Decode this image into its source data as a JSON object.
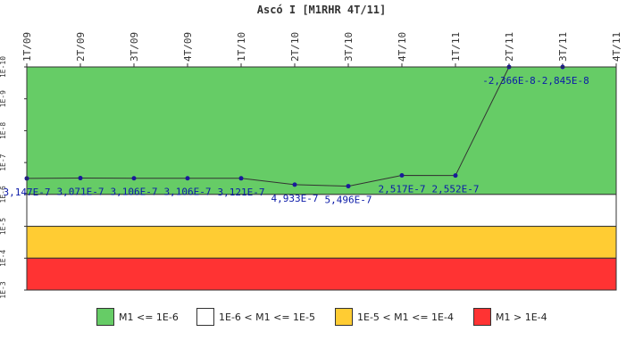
{
  "chart_data": {
    "type": "line",
    "title": "Ascó I [M1RHR 4T/11]",
    "y_scale": "log",
    "y_axis_reversed": true,
    "ylim": [
      1e-10,
      0.001
    ],
    "y_ticks": [
      "1E-10",
      "1E-9",
      "1E-8",
      "1E-7",
      "1E-6",
      "1E-5",
      "1E-4",
      "1E-3"
    ],
    "categories": [
      "1T/09",
      "2T/09",
      "3T/09",
      "4T/09",
      "1T/10",
      "2T/10",
      "3T/10",
      "4T/10",
      "1T/11",
      "2T/11",
      "3T/11",
      "4T/11"
    ],
    "series": [
      {
        "values": [
          3.147e-07,
          3.071e-07,
          3.106e-07,
          3.106e-07,
          3.121e-07,
          4.933e-07,
          5.496e-07,
          2.517e-07,
          2.552e-07,
          -2.366e-08,
          -2.845e-08,
          null
        ],
        "labels": [
          "3,147E-7",
          "3,071E-7",
          "3,106E-7",
          "3,106E-7",
          "3,121E-7",
          "4,933E-7",
          "5,496E-7",
          "2,517E-7",
          "2,552E-7",
          "-2,366E-8",
          "-2,845E-8",
          ""
        ],
        "color": "#333333",
        "marker_color": "#1a1a99",
        "label_color": "#0b1aa8"
      }
    ],
    "bands": [
      {
        "from": 1e-10,
        "to": 1e-06,
        "color": "#66cc66",
        "legend": "M1 <= 1E-6"
      },
      {
        "from": 1e-06,
        "to": 1e-05,
        "color": "#ffffff",
        "legend": "1E-6 < M1 <= 1E-5"
      },
      {
        "from": 1e-05,
        "to": 0.0001,
        "color": "#ffcc33",
        "legend": "1E-5 < M1 <= 1E-4"
      },
      {
        "from": 0.0001,
        "to": 0.001,
        "color": "#ff3333",
        "legend": "M1 > 1E-4"
      }
    ],
    "legend_position": "bottom"
  }
}
